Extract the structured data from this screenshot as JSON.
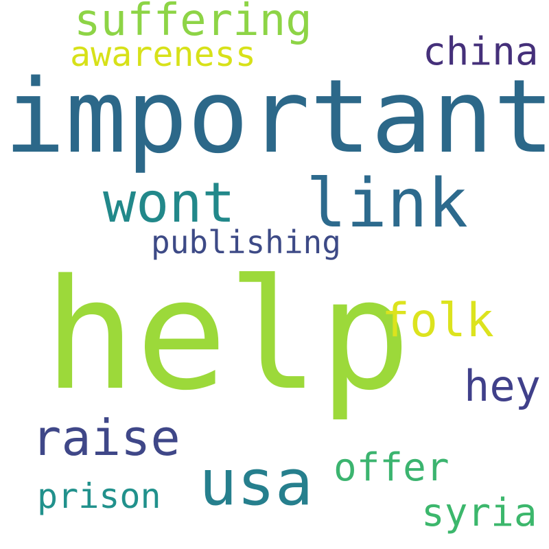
{
  "background": "#ffffff",
  "words": {
    "help": {
      "text": "help",
      "color": "#9cd93a"
    },
    "important": {
      "text": "important",
      "color": "#2c6889"
    },
    "link": {
      "text": "link",
      "color": "#2d6a8d"
    },
    "wont": {
      "text": "wont",
      "color": "#22888a"
    },
    "usa": {
      "text": "usa",
      "color": "#267f8d"
    },
    "raise": {
      "text": "raise",
      "color": "#3f4788"
    },
    "suffering": {
      "text": "suffering",
      "color": "#8dd446"
    },
    "folk": {
      "text": "folk",
      "color": "#dce31e"
    },
    "hey": {
      "text": "hey",
      "color": "#40408a"
    },
    "china": {
      "text": "china",
      "color": "#45307a"
    },
    "offer": {
      "text": "offer",
      "color": "#3bb46f"
    },
    "awareness": {
      "text": "awareness",
      "color": "#d7e119"
    },
    "publishing": {
      "text": "publishing",
      "color": "#3d4a86"
    },
    "prison": {
      "text": "prison",
      "color": "#21918c"
    },
    "syria": {
      "text": "syria",
      "color": "#3cb76c"
    }
  }
}
